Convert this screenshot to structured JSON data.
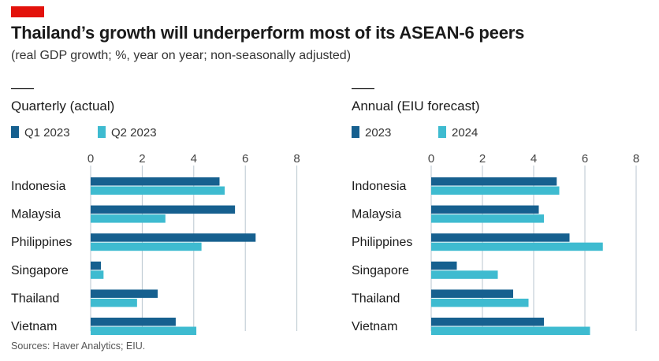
{
  "header": {
    "title": "Thailand’s growth will underperform most of its ASEAN-6 peers",
    "subtitle": "(real GDP growth; %, year on year; non-seasonally adjusted)"
  },
  "footer": {
    "source": "Sources: Haver Analytics; EIU."
  },
  "colors": {
    "dark": "#16608f",
    "light": "#3ebbd0",
    "grid": "#b9c6cf",
    "brand": "#e3120b"
  },
  "chart_data": [
    {
      "type": "bar",
      "orientation": "horizontal",
      "title": "Quarterly (actual)",
      "categories": [
        "Indonesia",
        "Malaysia",
        "Philippines",
        "Singapore",
        "Thailand",
        "Vietnam"
      ],
      "series": [
        {
          "name": "Q1 2023",
          "values": [
            5.0,
            5.6,
            6.4,
            0.4,
            2.6,
            3.3
          ]
        },
        {
          "name": "Q2 2023",
          "values": [
            5.2,
            2.9,
            4.3,
            0.5,
            1.8,
            4.1
          ]
        }
      ],
      "xlim": [
        0,
        8
      ],
      "xticks": [
        "0",
        "2",
        "4",
        "6",
        "8"
      ],
      "legend": "top-left",
      "grid": true
    },
    {
      "type": "bar",
      "orientation": "horizontal",
      "title": "Annual (EIU forecast)",
      "categories": [
        "Indonesia",
        "Malaysia",
        "Philippines",
        "Singapore",
        "Thailand",
        "Vietnam"
      ],
      "series": [
        {
          "name": "2023",
          "values": [
            4.9,
            4.2,
            5.4,
            1.0,
            3.2,
            4.4
          ]
        },
        {
          "name": "2024",
          "values": [
            5.0,
            4.4,
            6.7,
            2.6,
            3.8,
            6.2
          ]
        }
      ],
      "xlim": [
        0,
        8
      ],
      "xticks": [
        "0",
        "2",
        "4",
        "6",
        "8"
      ],
      "legend": "top-left",
      "grid": true
    }
  ]
}
